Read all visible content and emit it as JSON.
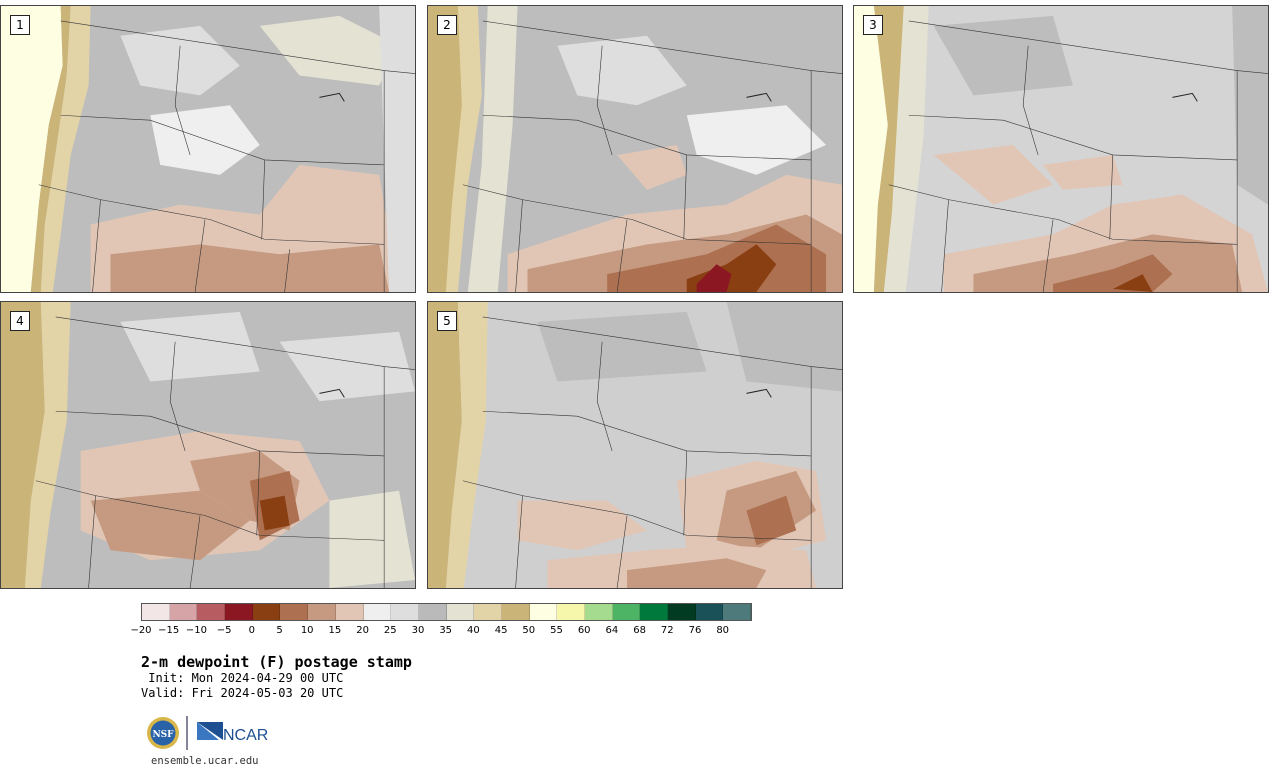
{
  "panels": [
    {
      "number": "1"
    },
    {
      "number": "2"
    },
    {
      "number": "3"
    },
    {
      "number": "4"
    },
    {
      "number": "5"
    }
  ],
  "colorbar": {
    "colors": [
      "#f2e6e6",
      "#d6a3a6",
      "#b75c61",
      "#8b1722",
      "#8a3f12",
      "#ad7151",
      "#c69a81",
      "#e1c6b6",
      "#efefef",
      "#dedede",
      "#bababa",
      "#e4e3d3",
      "#e3d4a7",
      "#cbb477",
      "#fefee2",
      "#f7f7ab",
      "#a5db8e",
      "#4cb464",
      "#007a3c",
      "#003b22",
      "#1a5057",
      "#4e7a7b"
    ],
    "tick_labels": [
      "−20",
      "−15",
      "−10",
      "−5",
      "0",
      "5",
      "10",
      "15",
      "20",
      "25",
      "30",
      "35",
      "40",
      "45",
      "50",
      "55",
      "60",
      "64",
      "68",
      "72",
      "76",
      "80"
    ]
  },
  "title": "2-m dewpoint (F) postage stamp",
  "init": " Init: Mon 2024-04-29 00 UTC",
  "valid": "Valid: Fri 2024-05-03 20 UTC",
  "logos": {
    "nsf": "NSF",
    "ncar": "NCAR"
  },
  "footer_url": "ensemble.ucar.edu"
}
